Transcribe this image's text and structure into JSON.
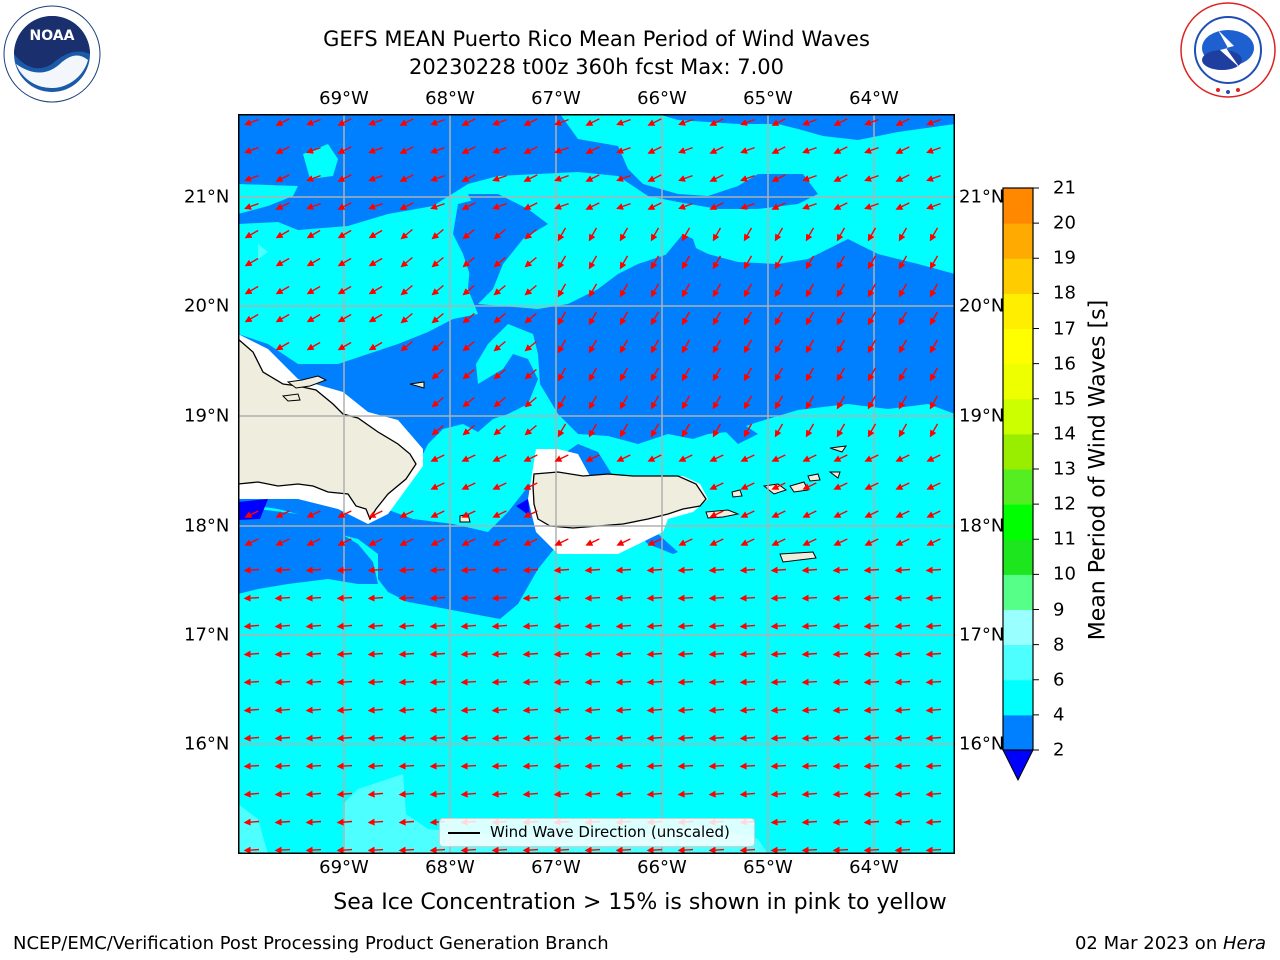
{
  "title": {
    "line1": "GEFS MEAN Puerto Rico Mean Period of Wind Waves",
    "line2": "20230228 t00z 360h fcst   Max: 7.00"
  },
  "logos": {
    "noaa_text": "NOAA",
    "noaa_ring_text": "NATIONAL OCEANIC AND ATMOSPHERIC ADMINISTRATION · U.S. DEPARTMENT OF COMMERCE",
    "nws_ring_text": "NATIONAL WEATHER SERVICE"
  },
  "map": {
    "lon_labels": [
      "69°W",
      "68°W",
      "67°W",
      "66°W",
      "65°W",
      "64°W"
    ],
    "lat_labels": [
      "21°N",
      "20°N",
      "19°N",
      "18°N",
      "17°N",
      "16°N"
    ],
    "legend_label": "Wind Wave Direction (unscaled)",
    "arrow_color": "#ff0000",
    "land_color": "#efedde",
    "grid_color": "#b0b0b0"
  },
  "colorbar": {
    "label": "Mean Period of Wind Waves [s]",
    "ticks": [
      "2",
      "4",
      "6",
      "8",
      "9",
      "10",
      "11",
      "12",
      "13",
      "14",
      "15",
      "16",
      "17",
      "18",
      "19",
      "20",
      "21"
    ],
    "colors": [
      "#0000ff",
      "#0080ff",
      "#00ffff",
      "#4dffff",
      "#99ffff",
      "#55ff88",
      "#1ee61e",
      "#00ff00",
      "#55ee22",
      "#99ee00",
      "#ccff00",
      "#eeff00",
      "#ffff00",
      "#ffee00",
      "#ffcc00",
      "#ffaa00",
      "#ff8800",
      "#ff5500",
      "#ff2200",
      "#ff0000"
    ]
  },
  "footnote": "Sea Ice Concentration > 15% is shown in pink to yellow",
  "footer": {
    "left": "NCEP/EMC/Verification Post Processing Product Generation Branch",
    "right_prefix": "02 Mar 2023 on ",
    "right_host": "Hera"
  }
}
